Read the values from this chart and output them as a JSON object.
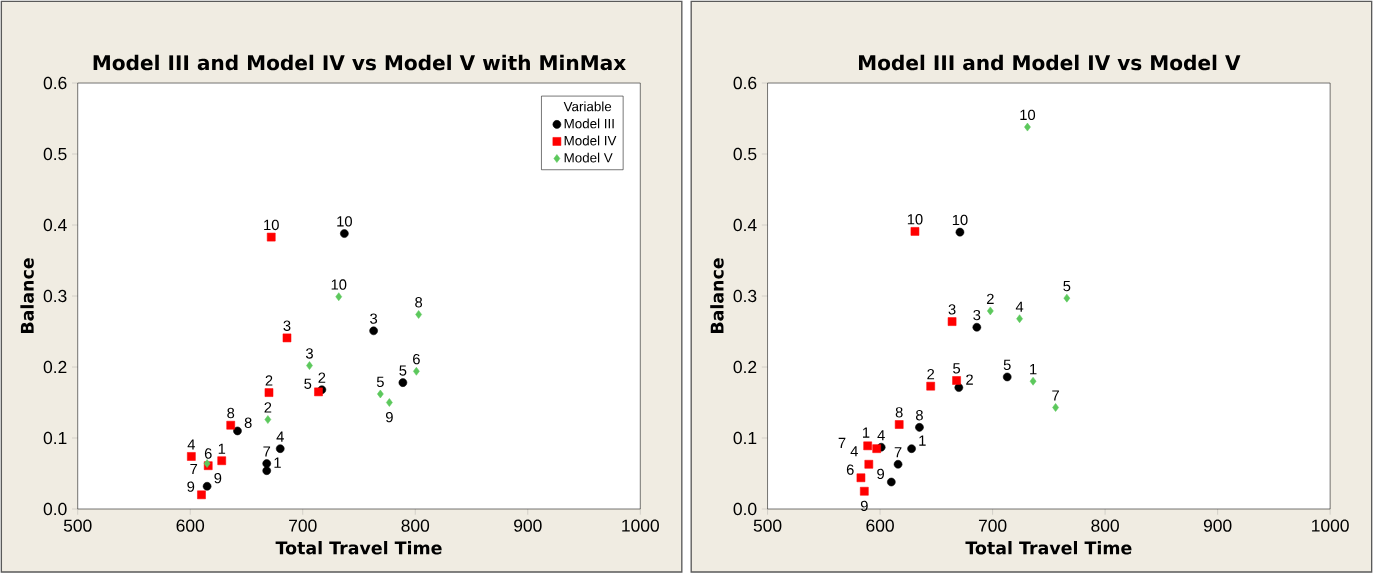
{
  "chart_data": [
    {
      "type": "scatter",
      "title": "Model III and Model IV vs Model V with MinMax",
      "xlabel": "Total Travel Time",
      "ylabel": "Balance",
      "xlim": [
        500,
        1000
      ],
      "ylim": [
        0,
        0.6
      ],
      "xticks": [
        500,
        600,
        700,
        800,
        900,
        1000
      ],
      "yticks": [
        {
          "value": 0,
          "label": "0.0"
        },
        0.1,
        0.2,
        0.3,
        0.4,
        0.5,
        0.6
      ],
      "legend": "top right",
      "legend_title": "Variable",
      "series": [
        {
          "name": "Model III",
          "color": "#000000",
          "marker": "circle",
          "x": [
            668,
            717,
            763,
            680,
            789,
            668,
            642,
            615,
            737
          ],
          "values": [
            0.054,
            0.168,
            0.251,
            0.085,
            0.178,
            0.064,
            0.11,
            0.032,
            0.388
          ]
        },
        {
          "name": "Model IV",
          "color": "#ff0000",
          "marker": "square",
          "x": [
            628,
            670,
            686,
            601,
            714,
            616,
            636,
            610,
            672
          ],
          "values": [
            0.068,
            0.164,
            0.241,
            0.074,
            0.165,
            0.061,
            0.118,
            0.02,
            0.383
          ]
        },
        {
          "name": "Model V",
          "color": "#5cc85c",
          "marker": "diamond",
          "x": [
            669,
            706,
            769,
            801,
            615,
            803,
            777,
            732
          ],
          "values": [
            0.126,
            0.202,
            0.162,
            0.194,
            0.064,
            0.274,
            0.15,
            0.299
          ]
        }
      ],
      "annotations": [
        {
          "text": "1",
          "x": 668,
          "y": 0.054
        },
        {
          "text": "2",
          "x": 717,
          "y": 0.168
        },
        {
          "text": "3",
          "x": 763,
          "y": 0.251
        },
        {
          "text": "4",
          "x": 680,
          "y": 0.085
        },
        {
          "text": "5",
          "x": 789,
          "y": 0.178
        },
        {
          "text": "7",
          "x": 668,
          "y": 0.064
        },
        {
          "text": "8",
          "x": 642,
          "y": 0.11
        },
        {
          "text": "9",
          "x": 615,
          "y": 0.032
        },
        {
          "text": "10",
          "x": 737,
          "y": 0.388
        },
        {
          "text": "1",
          "x": 628,
          "y": 0.068
        },
        {
          "text": "2",
          "x": 670,
          "y": 0.164
        },
        {
          "text": "3",
          "x": 686,
          "y": 0.241
        },
        {
          "text": "4",
          "x": 601,
          "y": 0.074
        },
        {
          "text": "5",
          "x": 714,
          "y": 0.165
        },
        {
          "text": "6",
          "x": 616,
          "y": 0.061
        },
        {
          "text": "8",
          "x": 636,
          "y": 0.118
        },
        {
          "text": "9",
          "x": 610,
          "y": 0.02
        },
        {
          "text": "10",
          "x": 672,
          "y": 0.383
        },
        {
          "text": "2",
          "x": 669,
          "y": 0.126
        },
        {
          "text": "3",
          "x": 706,
          "y": 0.202
        },
        {
          "text": "5",
          "x": 769,
          "y": 0.162
        },
        {
          "text": "6",
          "x": 801,
          "y": 0.194
        },
        {
          "text": "7",
          "x": 615,
          "y": 0.064
        },
        {
          "text": "8",
          "x": 803,
          "y": 0.274
        },
        {
          "text": "9",
          "x": 777,
          "y": 0.15
        },
        {
          "text": "10",
          "x": 732,
          "y": 0.299
        }
      ]
    },
    {
      "type": "scatter",
      "title": "Model III and Model IV vs Model V",
      "xlabel": "Total Travel Time",
      "ylabel": "Balance",
      "xlim": [
        500,
        1000
      ],
      "ylim": [
        0,
        0.6
      ],
      "xticks": [
        500,
        600,
        700,
        800,
        900,
        1000
      ],
      "yticks": [
        {
          "value": 0,
          "label": "0.0"
        },
        0.1,
        0.2,
        0.3,
        0.4,
        0.5,
        0.6
      ],
      "series": [
        {
          "color": "#000000",
          "marker": "circle",
          "x": [
            628,
            670,
            686,
            601,
            713,
            616,
            635,
            610,
            671
          ],
          "values": [
            0.085,
            0.171,
            0.256,
            0.087,
            0.186,
            0.063,
            0.115,
            0.038,
            0.39
          ]
        },
        {
          "color": "#ff0000",
          "marker": "square",
          "x": [
            597,
            645,
            664,
            589,
            668,
            583,
            590,
            617,
            586,
            631
          ],
          "values": [
            0.085,
            0.173,
            0.264,
            0.089,
            0.181,
            0.044,
            0.063,
            0.119,
            0.025,
            0.391
          ]
        },
        {
          "color": "#5cc85c",
          "marker": "diamond",
          "x": [
            736,
            698,
            724,
            766,
            756,
            731
          ],
          "values": [
            0.18,
            0.279,
            0.268,
            0.297,
            0.143,
            0.538
          ]
        }
      ],
      "annotations": [
        {
          "text": "1",
          "x": 628,
          "y": 0.085
        },
        {
          "text": "2",
          "x": 670,
          "y": 0.171
        },
        {
          "text": "3",
          "x": 686,
          "y": 0.256
        },
        {
          "text": "4",
          "x": 601,
          "y": 0.087
        },
        {
          "text": "5",
          "x": 713,
          "y": 0.186
        },
        {
          "text": "7",
          "x": 616,
          "y": 0.063
        },
        {
          "text": "8",
          "x": 635,
          "y": 0.115
        },
        {
          "text": "9",
          "x": 610,
          "y": 0.038
        },
        {
          "text": "10",
          "x": 671,
          "y": 0.39
        },
        {
          "text": "1",
          "x": 597,
          "y": 0.085
        },
        {
          "text": "2",
          "x": 645,
          "y": 0.173
        },
        {
          "text": "3",
          "x": 664,
          "y": 0.264
        },
        {
          "text": "4",
          "x": 589,
          "y": 0.089
        },
        {
          "text": "5",
          "x": 668,
          "y": 0.181
        },
        {
          "text": "6",
          "x": 583,
          "y": 0.044
        },
        {
          "text": "7",
          "x": 590,
          "y": 0.063
        },
        {
          "text": "8",
          "x": 617,
          "y": 0.119
        },
        {
          "text": "9",
          "x": 586,
          "y": 0.025
        },
        {
          "text": "10",
          "x": 631,
          "y": 0.391
        },
        {
          "text": "1",
          "x": 736,
          "y": 0.18
        },
        {
          "text": "2",
          "x": 698,
          "y": 0.279
        },
        {
          "text": "4",
          "x": 724,
          "y": 0.268
        },
        {
          "text": "5",
          "x": 766,
          "y": 0.297
        },
        {
          "text": "7",
          "x": 756,
          "y": 0.143
        },
        {
          "text": "10",
          "x": 731,
          "y": 0.538
        }
      ]
    }
  ]
}
